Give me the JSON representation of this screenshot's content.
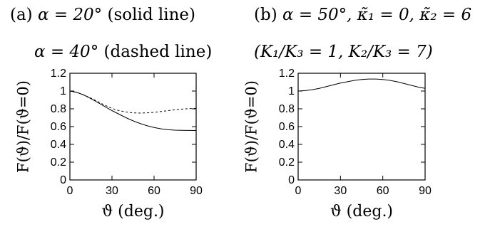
{
  "captions": {
    "a_line1_prefix": "(a) ",
    "a_line1_math": "α = 20°",
    "a_line1_suffix": " (solid line)",
    "a_line2_math": "α = 40°",
    "a_line2_suffix": " (dashed line)",
    "b_line1_prefix": "(b) ",
    "b_line1_math": "α = 50°, κ̃₁ = 0, κ̃₂ = 6",
    "b_line2_math": "(K₁/K₃ = 1, K₂/K₃ = 7)"
  },
  "chart_data": [
    {
      "type": "line",
      "panel": "a",
      "xlabel": "ϑ (deg.)",
      "ylabel": "F(ϑ)/F(ϑ=0)",
      "xlim": [
        0,
        90
      ],
      "ylim": [
        0,
        1.2
      ],
      "xticks": [
        0,
        30,
        60,
        90
      ],
      "yticks": [
        0,
        0.2,
        0.4,
        0.6,
        0.8,
        1,
        1.2
      ],
      "yticklabels": [
        "0",
        "0.2",
        "0.4",
        "0.6",
        "0.8",
        "1",
        "1.2"
      ],
      "grid": false,
      "series": [
        {
          "style": "solid",
          "x": [
            0,
            5,
            10,
            15,
            20,
            25,
            30,
            35,
            40,
            45,
            50,
            55,
            60,
            65,
            70,
            75,
            80,
            85,
            90
          ],
          "y": [
            1.0,
            0.985,
            0.955,
            0.915,
            0.87,
            0.825,
            0.78,
            0.74,
            0.7,
            0.665,
            0.635,
            0.61,
            0.59,
            0.575,
            0.565,
            0.56,
            0.558,
            0.557,
            0.556
          ]
        },
        {
          "style": "dashed",
          "x": [
            0,
            5,
            10,
            15,
            20,
            25,
            30,
            35,
            40,
            45,
            50,
            55,
            60,
            65,
            70,
            75,
            80,
            85,
            90
          ],
          "y": [
            1.0,
            0.985,
            0.955,
            0.92,
            0.88,
            0.84,
            0.805,
            0.78,
            0.765,
            0.755,
            0.752,
            0.755,
            0.76,
            0.77,
            0.78,
            0.79,
            0.797,
            0.802,
            0.805
          ]
        }
      ]
    },
    {
      "type": "line",
      "panel": "b",
      "xlabel": "ϑ (deg.)",
      "ylabel": "F(ϑ)/F(ϑ=0)",
      "xlim": [
        0,
        90
      ],
      "ylim": [
        0,
        1.2
      ],
      "xticks": [
        0,
        30,
        60,
        90
      ],
      "yticks": [
        0,
        0.2,
        0.4,
        0.6,
        0.8,
        1,
        1.2
      ],
      "yticklabels": [
        "0",
        "0.2",
        "0.4",
        "0.6",
        "0.8",
        "1",
        "1.2"
      ],
      "grid": false,
      "series": [
        {
          "style": "solid",
          "x": [
            0,
            5,
            10,
            15,
            20,
            25,
            30,
            35,
            40,
            45,
            50,
            55,
            60,
            65,
            70,
            75,
            80,
            85,
            90
          ],
          "y": [
            1.0,
            1.005,
            1.015,
            1.03,
            1.05,
            1.07,
            1.09,
            1.105,
            1.12,
            1.13,
            1.135,
            1.135,
            1.13,
            1.12,
            1.105,
            1.085,
            1.065,
            1.045,
            1.03
          ]
        }
      ]
    }
  ]
}
